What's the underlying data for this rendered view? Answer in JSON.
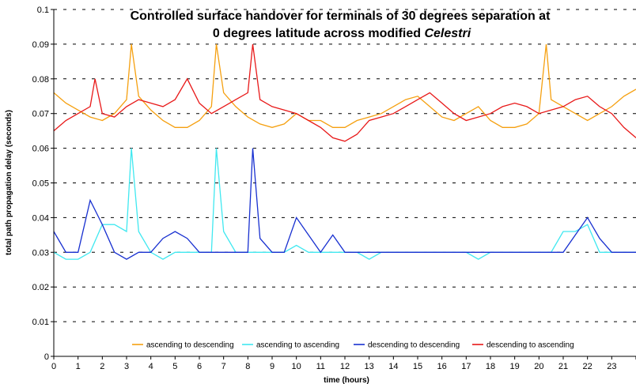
{
  "chart_data": {
    "type": "line",
    "title_line1": "Controlled surface handover for terminals of 30 degrees separation at",
    "title_line2_prefix": "0 degrees latitude across modified ",
    "title_line2_italic": "Celestri",
    "xlabel": "time (hours)",
    "ylabel": "total path propagation delay (seconds)",
    "xlim": [
      0,
      24
    ],
    "ylim": [
      0,
      0.1
    ],
    "x_ticks": [
      "0",
      "1",
      "2",
      "3",
      "4",
      "5",
      "6",
      "7",
      "8",
      "9",
      "10",
      "11",
      "12",
      "13",
      "14",
      "15",
      "16",
      "17",
      "18",
      "19",
      "20",
      "21",
      "22",
      "23"
    ],
    "y_ticks": [
      "0",
      "0.01",
      "0.02",
      "0.03",
      "0.04",
      "0.05",
      "0.06",
      "0.07",
      "0.08",
      "0.09",
      "0.1"
    ],
    "grid": "horizontal dashed",
    "legend_position": "bottom",
    "series": [
      {
        "name": "ascending to descending",
        "color": "#f5a010",
        "x": [
          0,
          0.5,
          1,
          1.5,
          2,
          2.5,
          3,
          3.2,
          3.5,
          4,
          4.5,
          5,
          5.5,
          6,
          6.5,
          6.7,
          7,
          7.5,
          8,
          8.5,
          9,
          9.5,
          10,
          10.5,
          11,
          11.5,
          12,
          12.5,
          13,
          13.5,
          14,
          14.5,
          15,
          15.5,
          16,
          16.5,
          17,
          17.5,
          18,
          18.5,
          19,
          19.5,
          20,
          20.3,
          20.5,
          21,
          21.5,
          22,
          22.5,
          23,
          23.5,
          24
        ],
        "y": [
          0.076,
          0.073,
          0.071,
          0.069,
          0.068,
          0.07,
          0.074,
          0.09,
          0.075,
          0.071,
          0.068,
          0.066,
          0.066,
          0.068,
          0.072,
          0.09,
          0.076,
          0.072,
          0.069,
          0.067,
          0.066,
          0.067,
          0.07,
          0.068,
          0.068,
          0.066,
          0.066,
          0.068,
          0.069,
          0.07,
          0.072,
          0.074,
          0.075,
          0.072,
          0.069,
          0.068,
          0.07,
          0.072,
          0.068,
          0.066,
          0.066,
          0.067,
          0.07,
          0.09,
          0.074,
          0.072,
          0.07,
          0.068,
          0.07,
          0.072,
          0.075,
          0.077
        ]
      },
      {
        "name": "ascending to ascending",
        "color": "#40e8f0",
        "x": [
          0,
          0.5,
          1,
          1.5,
          2,
          2.5,
          3,
          3.2,
          3.5,
          4,
          4.5,
          5,
          5.5,
          6,
          6.5,
          6.7,
          7,
          7.5,
          8,
          8.5,
          9,
          9.5,
          10,
          10.5,
          11,
          11.5,
          12,
          12.5,
          13,
          13.5,
          14,
          14.5,
          15,
          15.5,
          16,
          16.5,
          17,
          17.5,
          18,
          18.5,
          19,
          19.5,
          20,
          20.5,
          21,
          21.5,
          22,
          22.5,
          23,
          23.5,
          24
        ],
        "y": [
          0.03,
          0.028,
          0.028,
          0.03,
          0.038,
          0.038,
          0.036,
          0.06,
          0.036,
          0.03,
          0.028,
          0.03,
          0.03,
          0.03,
          0.03,
          0.06,
          0.036,
          0.03,
          0.03,
          0.03,
          0.03,
          0.03,
          0.032,
          0.03,
          0.03,
          0.03,
          0.03,
          0.03,
          0.028,
          0.03,
          0.03,
          0.03,
          0.03,
          0.03,
          0.03,
          0.03,
          0.03,
          0.028,
          0.03,
          0.03,
          0.03,
          0.03,
          0.03,
          0.03,
          0.036,
          0.036,
          0.038,
          0.03,
          0.03,
          0.03,
          0.03
        ]
      },
      {
        "name": "descending to descending",
        "color": "#1830d0",
        "x": [
          0,
          0.5,
          1,
          1.5,
          2,
          2.5,
          3,
          3.5,
          4,
          4.5,
          5,
          5.5,
          6,
          6.5,
          7,
          7.5,
          8,
          8.2,
          8.5,
          9,
          9.5,
          10,
          10.5,
          11,
          11.5,
          12,
          12.5,
          13,
          13.5,
          14,
          14.5,
          15,
          15.5,
          16,
          16.5,
          17,
          17.5,
          18,
          18.5,
          19,
          19.5,
          20,
          20.5,
          21,
          21.5,
          22,
          22.5,
          23,
          23.5,
          24
        ],
        "y": [
          0.036,
          0.03,
          0.03,
          0.045,
          0.038,
          0.03,
          0.028,
          0.03,
          0.03,
          0.034,
          0.036,
          0.034,
          0.03,
          0.03,
          0.03,
          0.03,
          0.03,
          0.06,
          0.034,
          0.03,
          0.03,
          0.04,
          0.035,
          0.03,
          0.035,
          0.03,
          0.03,
          0.03,
          0.03,
          0.03,
          0.03,
          0.03,
          0.03,
          0.03,
          0.03,
          0.03,
          0.03,
          0.03,
          0.03,
          0.03,
          0.03,
          0.03,
          0.03,
          0.03,
          0.035,
          0.04,
          0.034,
          0.03,
          0.03,
          0.03
        ]
      },
      {
        "name": "descending to ascending",
        "color": "#e81818",
        "x": [
          0,
          0.5,
          1,
          1.5,
          1.7,
          2,
          2.5,
          3,
          3.5,
          4,
          4.5,
          5,
          5.5,
          6,
          6.5,
          7,
          7.5,
          8,
          8.2,
          8.5,
          9,
          9.5,
          10,
          10.5,
          11,
          11.5,
          12,
          12.5,
          13,
          13.5,
          14,
          14.5,
          15,
          15.5,
          16,
          16.5,
          17,
          17.5,
          18,
          18.5,
          19,
          19.5,
          20,
          20.5,
          21,
          21.5,
          22,
          22.5,
          23,
          23.5,
          24
        ],
        "y": [
          0.065,
          0.068,
          0.07,
          0.072,
          0.08,
          0.07,
          0.069,
          0.072,
          0.074,
          0.073,
          0.072,
          0.074,
          0.08,
          0.073,
          0.07,
          0.072,
          0.074,
          0.076,
          0.09,
          0.074,
          0.072,
          0.071,
          0.07,
          0.068,
          0.066,
          0.063,
          0.062,
          0.064,
          0.068,
          0.069,
          0.07,
          0.072,
          0.074,
          0.076,
          0.073,
          0.07,
          0.068,
          0.069,
          0.07,
          0.072,
          0.073,
          0.072,
          0.07,
          0.071,
          0.072,
          0.074,
          0.075,
          0.072,
          0.07,
          0.066,
          0.063
        ]
      }
    ]
  }
}
